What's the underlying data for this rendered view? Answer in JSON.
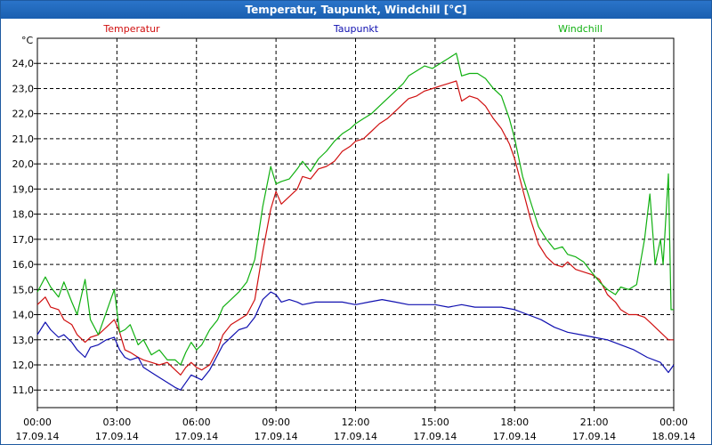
{
  "window": {
    "title": "Temperatur, Taupunkt, Windchill [°C]"
  },
  "chart_data": {
    "type": "line",
    "title": "Temperatur, Taupunkt, Windchill [°C]",
    "ylabel": "°C",
    "ylim": [
      10.3,
      25.0
    ],
    "xlim": [
      0,
      24
    ],
    "grid": true,
    "y_ticks": [
      "11,0",
      "12,0",
      "13,0",
      "14,0",
      "15,0",
      "16,0",
      "17,0",
      "18,0",
      "19,0",
      "20,0",
      "21,0",
      "22,0",
      "23,0",
      "24,0"
    ],
    "x_ticks": [
      {
        "time": "00:00",
        "date": "17.09.14"
      },
      {
        "time": "03:00",
        "date": "17.09.14"
      },
      {
        "time": "06:00",
        "date": "17.09.14"
      },
      {
        "time": "09:00",
        "date": "17.09.14"
      },
      {
        "time": "12:00",
        "date": "17.09.14"
      },
      {
        "time": "15:00",
        "date": "17.09.14"
      },
      {
        "time": "18:00",
        "date": "17.09.14"
      },
      {
        "time": "21:00",
        "date": "17.09.14"
      },
      {
        "time": "00:00",
        "date": "18.09.14"
      }
    ],
    "series": [
      {
        "name": "Temperatur",
        "color": "#d01010",
        "x": [
          0,
          0.3,
          0.5,
          0.8,
          1.0,
          1.3,
          1.5,
          1.8,
          2.0,
          2.3,
          2.6,
          2.9,
          3.1,
          3.3,
          3.5,
          3.8,
          4.0,
          4.3,
          4.6,
          4.9,
          5.2,
          5.4,
          5.6,
          5.8,
          6.0,
          6.2,
          6.5,
          6.8,
          7.0,
          7.3,
          7.6,
          7.9,
          8.2,
          8.5,
          8.8,
          9.0,
          9.2,
          9.5,
          9.8,
          10.0,
          10.3,
          10.6,
          10.9,
          11.2,
          11.5,
          11.8,
          12.0,
          12.3,
          12.6,
          12.9,
          13.2,
          13.5,
          13.8,
          14.0,
          14.3,
          14.6,
          14.9,
          15.2,
          15.5,
          15.8,
          16.0,
          16.3,
          16.6,
          16.9,
          17.2,
          17.5,
          17.8,
          18.0,
          18.3,
          18.6,
          18.9,
          19.2,
          19.5,
          19.8,
          20.0,
          20.3,
          20.6,
          20.9,
          21.2,
          21.5,
          21.8,
          22.0,
          22.3,
          22.6,
          22.9,
          23.2,
          23.5,
          23.8,
          24.0
        ],
        "values": [
          14.4,
          14.7,
          14.3,
          14.2,
          13.8,
          13.6,
          13.2,
          12.9,
          13.1,
          13.2,
          13.5,
          13.8,
          13.3,
          12.6,
          12.5,
          12.3,
          12.2,
          12.1,
          12.0,
          12.1,
          11.8,
          11.6,
          11.9,
          12.1,
          11.9,
          11.8,
          12.0,
          12.6,
          13.2,
          13.6,
          13.8,
          14.0,
          14.6,
          16.5,
          18.2,
          18.9,
          18.4,
          18.7,
          19.0,
          19.5,
          19.4,
          19.8,
          19.9,
          20.1,
          20.5,
          20.7,
          20.9,
          21.0,
          21.3,
          21.6,
          21.8,
          22.1,
          22.4,
          22.6,
          22.7,
          22.9,
          23.0,
          23.1,
          23.2,
          23.3,
          22.5,
          22.7,
          22.6,
          22.3,
          21.8,
          21.4,
          20.8,
          20.2,
          19.0,
          17.8,
          16.8,
          16.3,
          16.0,
          15.9,
          16.1,
          15.8,
          15.7,
          15.6,
          15.4,
          14.8,
          14.5,
          14.2,
          14.0,
          14.0,
          13.9,
          13.6,
          13.3,
          13.0,
          13.0
        ]
      },
      {
        "name": "Taupunkt",
        "color": "#1010b0",
        "x": [
          0,
          0.3,
          0.5,
          0.8,
          1.0,
          1.3,
          1.5,
          1.8,
          2.0,
          2.3,
          2.6,
          2.9,
          3.1,
          3.3,
          3.5,
          3.8,
          4.0,
          4.3,
          4.6,
          4.9,
          5.2,
          5.4,
          5.6,
          5.8,
          6.0,
          6.2,
          6.5,
          6.8,
          7.0,
          7.3,
          7.6,
          7.9,
          8.2,
          8.5,
          8.8,
          9.0,
          9.2,
          9.5,
          9.8,
          10.0,
          10.5,
          11.0,
          11.5,
          12.0,
          12.5,
          13.0,
          13.5,
          14.0,
          14.5,
          15.0,
          15.5,
          16.0,
          16.5,
          17.0,
          17.5,
          18.0,
          18.5,
          19.0,
          19.5,
          20.0,
          20.5,
          21.0,
          21.5,
          22.0,
          22.5,
          23.0,
          23.5,
          23.8,
          24.0
        ],
        "values": [
          13.2,
          13.7,
          13.4,
          13.1,
          13.2,
          12.9,
          12.6,
          12.3,
          12.7,
          12.8,
          13.0,
          13.1,
          12.6,
          12.3,
          12.2,
          12.3,
          11.9,
          11.7,
          11.5,
          11.3,
          11.1,
          11.0,
          11.3,
          11.6,
          11.5,
          11.4,
          11.8,
          12.4,
          12.8,
          13.1,
          13.4,
          13.5,
          13.9,
          14.6,
          14.9,
          14.8,
          14.5,
          14.6,
          14.5,
          14.4,
          14.5,
          14.5,
          14.5,
          14.4,
          14.5,
          14.6,
          14.5,
          14.4,
          14.4,
          14.4,
          14.3,
          14.4,
          14.3,
          14.3,
          14.3,
          14.2,
          14.0,
          13.8,
          13.5,
          13.3,
          13.2,
          13.1,
          13.0,
          12.8,
          12.6,
          12.3,
          12.1,
          11.7,
          12.0
        ]
      },
      {
        "name": "Windchill",
        "color": "#10b010",
        "x": [
          0,
          0.3,
          0.5,
          0.8,
          1.0,
          1.3,
          1.5,
          1.8,
          2.0,
          2.3,
          2.6,
          2.9,
          3.1,
          3.3,
          3.5,
          3.8,
          4.0,
          4.3,
          4.6,
          4.9,
          5.2,
          5.4,
          5.6,
          5.8,
          6.0,
          6.2,
          6.5,
          6.8,
          7.0,
          7.3,
          7.6,
          7.9,
          8.2,
          8.5,
          8.8,
          9.0,
          9.2,
          9.5,
          9.8,
          10.0,
          10.3,
          10.6,
          10.9,
          11.2,
          11.5,
          11.8,
          12.0,
          12.3,
          12.6,
          12.9,
          13.2,
          13.5,
          13.8,
          14.0,
          14.3,
          14.6,
          14.9,
          15.2,
          15.5,
          15.8,
          16.0,
          16.3,
          16.6,
          16.9,
          17.2,
          17.5,
          17.8,
          18.0,
          18.3,
          18.6,
          18.9,
          19.2,
          19.5,
          19.8,
          20.0,
          20.3,
          20.6,
          20.9,
          21.2,
          21.5,
          21.8,
          22.0,
          22.3,
          22.6,
          22.9,
          23.1,
          23.3,
          23.5,
          23.6,
          23.8,
          23.9,
          24.0
        ],
        "values": [
          14.9,
          15.5,
          15.1,
          14.7,
          15.3,
          14.5,
          14.0,
          15.4,
          13.8,
          13.2,
          14.1,
          15.0,
          13.3,
          13.4,
          13.6,
          12.8,
          13.0,
          12.4,
          12.6,
          12.2,
          12.2,
          12.0,
          12.5,
          12.9,
          12.6,
          12.8,
          13.4,
          13.8,
          14.3,
          14.6,
          14.9,
          15.3,
          16.2,
          18.3,
          19.9,
          19.2,
          19.3,
          19.4,
          19.8,
          20.1,
          19.7,
          20.2,
          20.5,
          20.9,
          21.2,
          21.4,
          21.6,
          21.8,
          22.0,
          22.3,
          22.6,
          22.9,
          23.2,
          23.5,
          23.7,
          23.9,
          23.8,
          24.0,
          24.2,
          24.4,
          23.5,
          23.6,
          23.6,
          23.4,
          23.0,
          22.7,
          21.8,
          21.0,
          19.5,
          18.5,
          17.5,
          17.0,
          16.6,
          16.7,
          16.4,
          16.3,
          16.1,
          15.7,
          15.3,
          15.0,
          14.8,
          15.1,
          15.0,
          15.2,
          17.0,
          18.8,
          16.0,
          17.0,
          16.0,
          19.6,
          14.2,
          14.2
        ]
      }
    ]
  }
}
